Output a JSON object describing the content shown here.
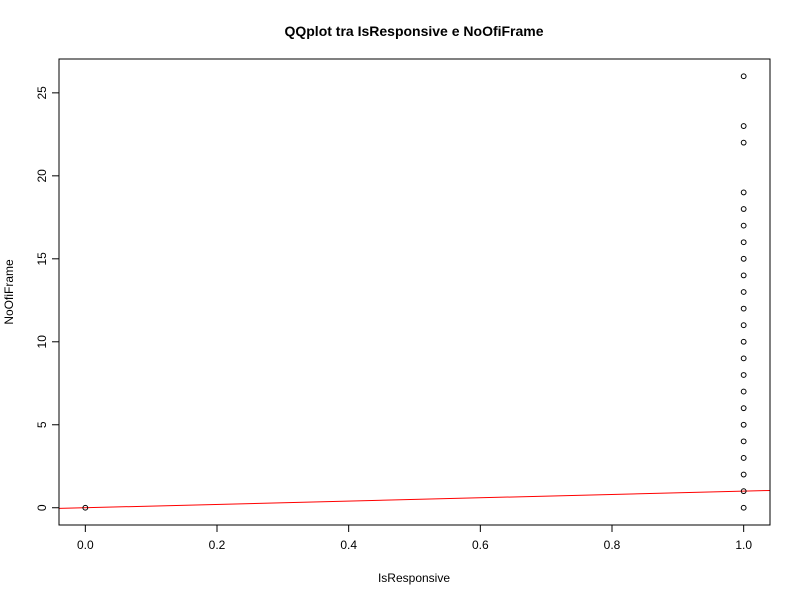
{
  "chart_data": {
    "type": "scatter",
    "title": "QQplot tra IsResponsive e NoOfiFrame",
    "xlabel": "IsResponsive",
    "ylabel": "NoOfiFrame",
    "xlim": [
      -0.04,
      1.04
    ],
    "ylim": [
      -1.04,
      27.04
    ],
    "x_ticks": [
      0.0,
      0.2,
      0.4,
      0.6,
      0.8,
      1.0
    ],
    "x_tick_labels": [
      "0.0",
      "0.2",
      "0.4",
      "0.6",
      "0.8",
      "1.0"
    ],
    "y_ticks": [
      0,
      5,
      10,
      15,
      20,
      25
    ],
    "y_tick_labels": [
      "0",
      "5",
      "10",
      "15",
      "20",
      "25"
    ],
    "grid": false,
    "legend": "none",
    "points": [
      {
        "x": 0,
        "y": 0
      },
      {
        "x": 1,
        "y": 0
      },
      {
        "x": 1,
        "y": 1
      },
      {
        "x": 1,
        "y": 2
      },
      {
        "x": 1,
        "y": 3
      },
      {
        "x": 1,
        "y": 4
      },
      {
        "x": 1,
        "y": 5
      },
      {
        "x": 1,
        "y": 6
      },
      {
        "x": 1,
        "y": 7
      },
      {
        "x": 1,
        "y": 8
      },
      {
        "x": 1,
        "y": 9
      },
      {
        "x": 1,
        "y": 10
      },
      {
        "x": 1,
        "y": 11
      },
      {
        "x": 1,
        "y": 12
      },
      {
        "x": 1,
        "y": 13
      },
      {
        "x": 1,
        "y": 14
      },
      {
        "x": 1,
        "y": 15
      },
      {
        "x": 1,
        "y": 16
      },
      {
        "x": 1,
        "y": 17
      },
      {
        "x": 1,
        "y": 18
      },
      {
        "x": 1,
        "y": 19
      },
      {
        "x": 1,
        "y": 22
      },
      {
        "x": 1,
        "y": 23
      },
      {
        "x": 1,
        "y": 26
      }
    ],
    "reference_line": {
      "intercept": 0,
      "slope": 1,
      "color": "#ff0000"
    },
    "point_color": "#000000"
  }
}
